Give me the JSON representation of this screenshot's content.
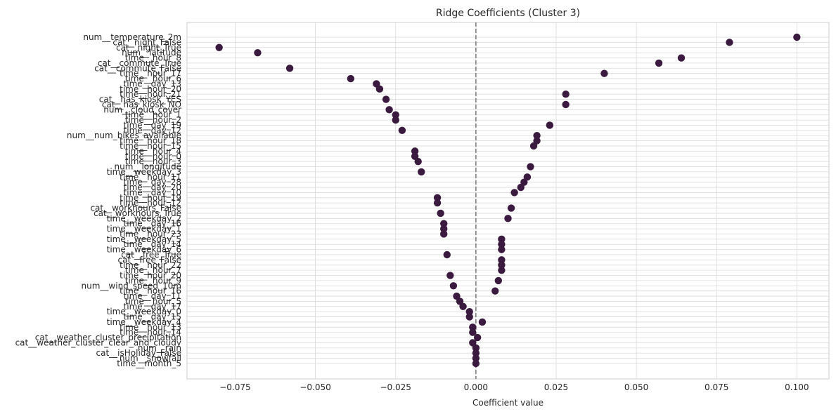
{
  "chart_data": {
    "type": "scatter",
    "title": "Ridge Coefficients (Cluster 3)",
    "xlabel": "Coefficient value",
    "ylabel": "",
    "xlim": [
      -0.09,
      0.11
    ],
    "xticks": [
      -0.075,
      -0.05,
      -0.025,
      0.0,
      0.025,
      0.05,
      0.075,
      0.1
    ],
    "xtick_labels": [
      "−0.075",
      "−0.050",
      "−0.025",
      "0.000",
      "0.025",
      "0.050",
      "0.075",
      "0.100"
    ],
    "grid": true,
    "reference_line": 0.0,
    "marker_color": "#3a1a3e",
    "categories": [
      "num__temperature_2m",
      "cat__night_False",
      "cat__night_True",
      "num__latitude",
      "time__hour_8",
      "cat__commute_True",
      "cat__commute_False",
      "time__hour_17",
      "time__hour_6",
      "time__day_13",
      "time__hour_20",
      "time__hour_21",
      "cat__has_kiosk_YES",
      "cat__has_kiosk_NO",
      "num__cloud_cover",
      "time__hour_1",
      "time__hour_2",
      "time__day_19",
      "time__day_12",
      "num__num_bikes_available",
      "time__hour_18",
      "time__hour_15",
      "time__hour_4",
      "time__hour_0",
      "time__hour_3",
      "num__longitude",
      "time__weekday_3",
      "time__hour_11",
      "time__day_28",
      "time__day_20",
      "time__day_10",
      "time__hour_19",
      "time__hour_12",
      "cat__workhours_False",
      "cat__workhours_True",
      "time__weekday_2",
      "time__day_16",
      "time__weekday_1",
      "time__hour_23",
      "time__weekday_5",
      "time__day_14",
      "time__weekday_6",
      "cat__free_True",
      "cat__free_False",
      "time__hour_22",
      "time__hour_7",
      "time__hour_20",
      "time__hour_9",
      "num__wind_speed_10m",
      "time__hour_16",
      "time__day_11",
      "time__hour_5",
      "time__day_17",
      "time__weekday_0",
      "time__day_15",
      "time__weekday_4",
      "time__hour_13",
      "time__hour_14",
      "cat__weather_cluster_precipitation",
      "cat__weather_cluster_clear_and_cloudy",
      "num__rain",
      "cat__isHoliday_False",
      "num__snowfall",
      "time__month_5"
    ],
    "values": [
      0.1,
      0.079,
      -0.08,
      -0.068,
      0.064,
      0.057,
      -0.058,
      0.04,
      -0.039,
      -0.031,
      -0.03,
      0.028,
      -0.028,
      0.028,
      -0.027,
      -0.025,
      -0.025,
      0.023,
      -0.023,
      0.019,
      0.019,
      0.018,
      -0.019,
      -0.019,
      -0.018,
      0.017,
      -0.017,
      0.016,
      0.015,
      0.014,
      0.012,
      -0.012,
      -0.012,
      0.011,
      -0.011,
      0.01,
      -0.01,
      -0.01,
      -0.01,
      0.008,
      0.008,
      0.008,
      -0.009,
      0.008,
      0.008,
      0.008,
      -0.008,
      0.007,
      -0.007,
      0.006,
      -0.006,
      -0.005,
      -0.004,
      -0.002,
      -0.002,
      0.002,
      -0.001,
      -0.001,
      0.0005,
      -0.001,
      0.0,
      0.0,
      0.0,
      0.0
    ]
  }
}
